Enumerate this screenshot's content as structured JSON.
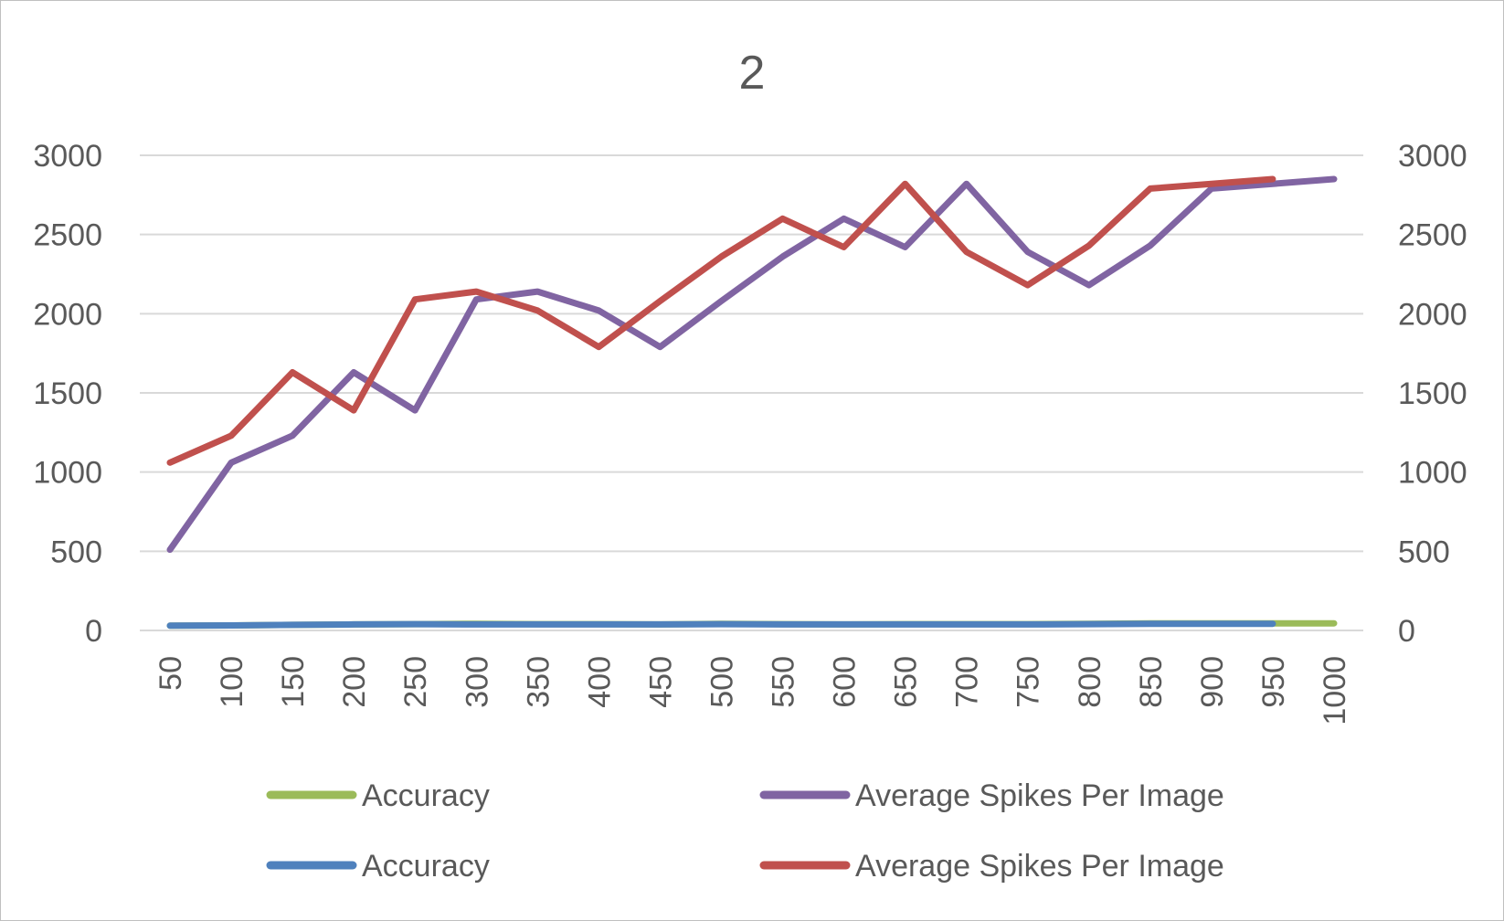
{
  "chart_data": {
    "type": "line",
    "title": "2",
    "categories": [
      "50",
      "100",
      "150",
      "200",
      "250",
      "300",
      "350",
      "400",
      "450",
      "500",
      "550",
      "600",
      "650",
      "700",
      "750",
      "800",
      "850",
      "900",
      "950",
      "1000"
    ],
    "y_ticks_left": [
      "0",
      "500",
      "1000",
      "1500",
      "2000",
      "2500",
      "3000"
    ],
    "y_ticks_right": [
      "0",
      "500",
      "1000",
      "1500",
      "2000",
      "2500",
      "3000"
    ],
    "ylim": [
      0,
      3000
    ],
    "grid": true,
    "legend_position": "bottom",
    "series": [
      {
        "name": "Accuracy",
        "color": "#9bbb59",
        "values": [
          30,
          32,
          35,
          38,
          40,
          42,
          40,
          40,
          38,
          42,
          40,
          38,
          40,
          40,
          40,
          42,
          45,
          45,
          45,
          45
        ]
      },
      {
        "name": "Average Spikes Per Image",
        "color": "#8064a2",
        "values": [
          510,
          1060,
          1230,
          1630,
          1390,
          2090,
          2140,
          2020,
          1790,
          2080,
          2360,
          2600,
          2420,
          2820,
          2390,
          2180,
          2430,
          2790,
          2820,
          2850
        ]
      },
      {
        "name": "Accuracy",
        "color": "#4f81bd",
        "values": [
          30,
          32,
          35,
          38,
          40,
          38,
          38,
          38,
          38,
          40,
          38,
          38,
          38,
          38,
          38,
          40,
          42,
          42,
          42,
          null
        ]
      },
      {
        "name": "Average Spikes Per Image",
        "color": "#c0504d",
        "values": [
          1060,
          1230,
          1630,
          1390,
          2090,
          2140,
          2020,
          1790,
          2080,
          2360,
          2600,
          2420,
          2820,
          2390,
          2180,
          2430,
          2790,
          2820,
          2850,
          null
        ]
      }
    ]
  }
}
